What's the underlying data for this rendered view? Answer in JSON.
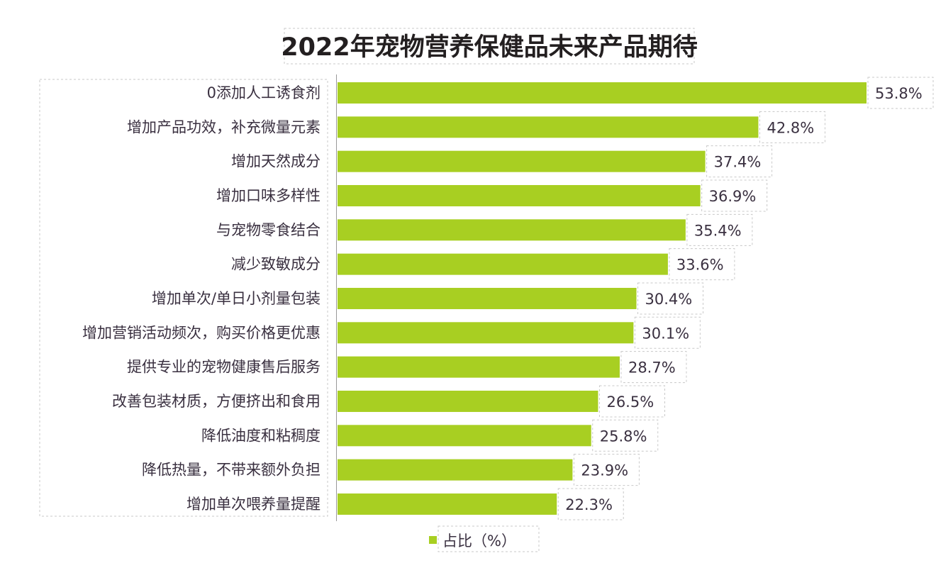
{
  "chart_data": {
    "type": "bar",
    "orientation": "horizontal",
    "title": "2022年宠物营养保健品未来产品期待",
    "categories": [
      "0添加人工诱食剂",
      "增加产品功效，补充微量元素",
      "增加天然成分",
      "增加口味多样性",
      "与宠物零食结合",
      "减少致敏成分",
      "增加单次/单日小剂量包装",
      "增加营销活动频次，购买价格更优惠",
      "提供专业的宠物健康售后服务",
      "改善包装材质，方便挤出和食用",
      "降低油度和粘稠度",
      "降低热量，不带来额外负担",
      "增加单次喂养量提醒"
    ],
    "series": [
      {
        "name": "占比（%）",
        "values": [
          53.8,
          42.8,
          37.4,
          36.9,
          35.4,
          33.6,
          30.4,
          30.1,
          28.7,
          26.5,
          25.8,
          23.9,
          22.3
        ]
      }
    ],
    "value_labels": [
      "53.8%",
      "42.8%",
      "37.4%",
      "36.9%",
      "35.4%",
      "33.6%",
      "30.4%",
      "30.1%",
      "28.7%",
      "26.5%",
      "25.8%",
      "23.9%",
      "22.3%"
    ],
    "xlim": [
      0,
      55
    ],
    "grid": false,
    "legend": "bottom",
    "color": "#a8cf22"
  }
}
